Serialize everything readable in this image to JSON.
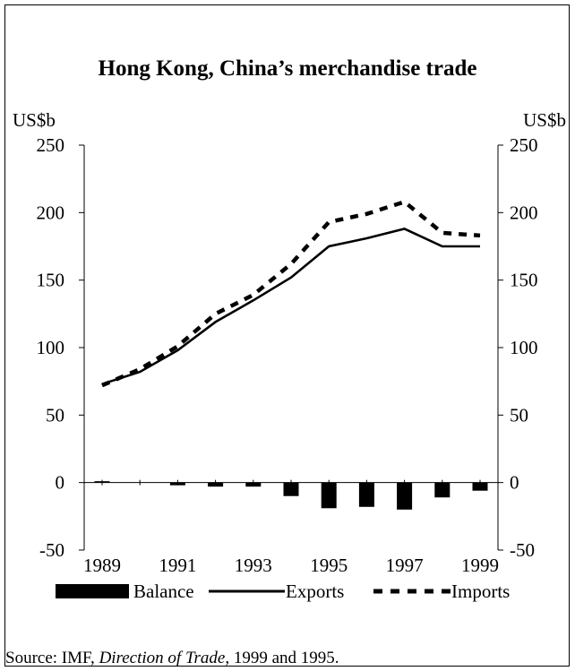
{
  "chart_data": {
    "type": "line",
    "title": "Hong Kong, China’s merchandise trade",
    "left_unit": "US$b",
    "right_unit": "US$b",
    "ylim": [
      -50,
      250
    ],
    "yticks": [
      "250",
      "200",
      "150",
      "100",
      "50",
      "0",
      "-50"
    ],
    "ytick_values": [
      250,
      200,
      150,
      100,
      50,
      0,
      -50
    ],
    "x": [
      1989,
      1990,
      1991,
      1992,
      1993,
      1994,
      1995,
      1996,
      1997,
      1998,
      1999
    ],
    "xtick_labels": [
      "1989",
      "1991",
      "1993",
      "1995",
      "1997",
      "1999"
    ],
    "xtick_values": [
      1989,
      1991,
      1993,
      1995,
      1997,
      1999
    ],
    "series": [
      {
        "name": "Balance",
        "kind": "bar",
        "values": [
          1,
          0,
          -2,
          -3,
          -3,
          -10,
          -19,
          -18,
          -20,
          -11,
          -6
        ]
      },
      {
        "name": "Exports",
        "kind": "line-solid",
        "values": [
          73,
          82,
          98,
          119,
          135,
          152,
          175,
          181,
          188,
          175,
          175
        ]
      },
      {
        "name": "Imports",
        "kind": "line-dashed",
        "values": [
          72,
          84,
          101,
          125,
          139,
          162,
          193,
          199,
          208,
          185,
          183
        ]
      }
    ],
    "legend_placement": "bottom",
    "grid": false
  },
  "legend": {
    "balance": "Balance",
    "exports": "Exports",
    "imports": "Imports"
  },
  "source": {
    "prefix": "Source:  IMF, ",
    "publication": "Direction of Trade",
    "suffix": ", 1999 and 1995."
  }
}
